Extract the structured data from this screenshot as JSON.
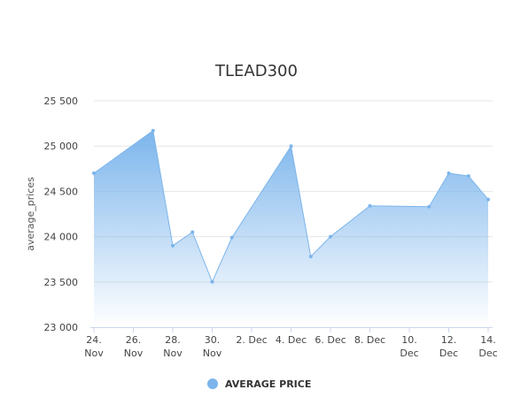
{
  "chart_data": {
    "type": "area",
    "title": "TLEAD300",
    "xlabel": "",
    "ylabel": "average_prices",
    "ylim": [
      23000,
      25500
    ],
    "y_ticks": [
      23000,
      23500,
      24000,
      24500,
      25000,
      25500
    ],
    "y_tick_labels": [
      "23 000",
      "23 500",
      "24 000",
      "24 500",
      "25 000",
      "25 500"
    ],
    "x_range": [
      "2023-11-24",
      "2023-12-14"
    ],
    "x_ticks": [
      {
        "date": "2023-11-24",
        "lines": [
          "24.",
          "Nov"
        ]
      },
      {
        "date": "2023-11-26",
        "lines": [
          "26.",
          "Nov"
        ]
      },
      {
        "date": "2023-11-28",
        "lines": [
          "28.",
          "Nov"
        ]
      },
      {
        "date": "2023-11-30",
        "lines": [
          "30.",
          "Nov"
        ]
      },
      {
        "date": "2023-12-02",
        "lines": [
          "2. Dec"
        ]
      },
      {
        "date": "2023-12-04",
        "lines": [
          "4. Dec"
        ]
      },
      {
        "date": "2023-12-06",
        "lines": [
          "6. Dec"
        ]
      },
      {
        "date": "2023-12-08",
        "lines": [
          "8. Dec"
        ]
      },
      {
        "date": "2023-12-10",
        "lines": [
          "10.",
          "Dec"
        ]
      },
      {
        "date": "2023-12-12",
        "lines": [
          "12.",
          "Dec"
        ]
      },
      {
        "date": "2023-12-14",
        "lines": [
          "14.",
          "Dec"
        ]
      }
    ],
    "series": [
      {
        "name": "AVERAGE PRICE",
        "color": "#7cb5ec",
        "points": [
          {
            "x": "2023-11-24",
            "y": 24700
          },
          {
            "x": "2023-11-27",
            "y": 25170
          },
          {
            "x": "2023-11-28",
            "y": 23900
          },
          {
            "x": "2023-11-29",
            "y": 24050
          },
          {
            "x": "2023-11-30",
            "y": 23500
          },
          {
            "x": "2023-12-01",
            "y": 23990
          },
          {
            "x": "2023-12-04",
            "y": 25000
          },
          {
            "x": "2023-12-05",
            "y": 23780
          },
          {
            "x": "2023-12-06",
            "y": 24000
          },
          {
            "x": "2023-12-08",
            "y": 24340
          },
          {
            "x": "2023-12-11",
            "y": 24330
          },
          {
            "x": "2023-12-12",
            "y": 24700
          },
          {
            "x": "2023-12-13",
            "y": 24670
          },
          {
            "x": "2023-12-14",
            "y": 24410
          }
        ]
      }
    ],
    "grid": true,
    "legend_position": "bottom-center"
  }
}
